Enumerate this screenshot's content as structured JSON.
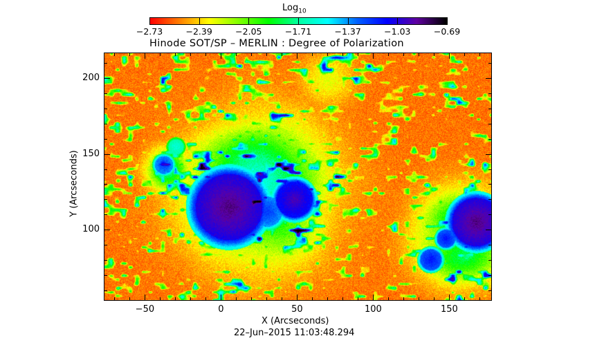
{
  "chart_data": {
    "type": "heatmap",
    "title": "Hinode SOT/SP – MERLIN : Degree of Polarization",
    "xlabel": "X (Arcseconds)",
    "ylabel": "Y (Arcseconds)",
    "timestamp": "22–Jun–2015 11:03:48.294",
    "xlim": [
      -77,
      178
    ],
    "ylim": [
      53,
      217
    ],
    "xticks": [
      -50,
      0,
      50,
      100,
      150
    ],
    "xtick_labels": [
      "−50",
      "0",
      "50",
      "100",
      "150"
    ],
    "yticks": [
      100,
      150,
      200
    ],
    "ytick_labels": [
      "100",
      "150",
      "200"
    ],
    "colorbar": {
      "title": "Log",
      "title_subscript": "10",
      "range": [
        -2.73,
        -0.69
      ],
      "ticks": [
        -2.73,
        -2.39,
        -2.05,
        -1.71,
        -1.37,
        -1.03,
        -0.69
      ],
      "tick_labels": [
        "−2.73",
        "−2.39",
        "−2.05",
        "−1.71",
        "−1.37",
        "−1.03",
        "−0.69"
      ],
      "colormap": [
        "#ff0000",
        "#ff8000",
        "#ffff00",
        "#80ff00",
        "#00ff00",
        "#00ffa0",
        "#00ffff",
        "#0060ff",
        "#0000ff",
        "#6000a0",
        "#000000"
      ]
    }
  }
}
